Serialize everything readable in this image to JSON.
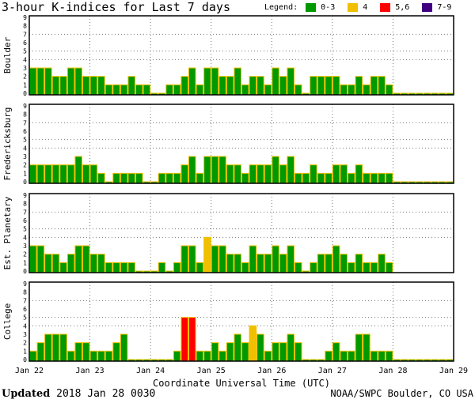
{
  "title": "3-hour K-indices for Last 7 days",
  "legend": {
    "label": "Legend:",
    "items": [
      {
        "label": "0-3",
        "color": "#009900"
      },
      {
        "label": "4",
        "color": "#f0c000"
      },
      {
        "label": "5,6",
        "color": "#ff0000"
      },
      {
        "label": "7-9",
        "color": "#400080"
      }
    ]
  },
  "footer": {
    "updated_label": "Updated",
    "updated_value": "2018 Jan 28 0030",
    "source": "NOAA/SWPC Boulder, CO USA"
  },
  "chart_data": {
    "type": "bar",
    "title": "3-hour K-indices for Last 7 days",
    "xlabel": "Coordinate Universal Time (UTC)",
    "x_ticks": [
      "Jan 22",
      "Jan 23",
      "Jan 24",
      "Jan 25",
      "Jan 26",
      "Jan 27",
      "Jan 28",
      "Jan 29"
    ],
    "ylim": [
      0,
      9
    ],
    "y_ticks": [
      "0",
      "1",
      "2",
      "3",
      "4",
      "5",
      "6",
      "7",
      "8",
      "9"
    ],
    "bars_per_day": 8,
    "panels": [
      {
        "name": "Boulder",
        "values": [
          3,
          3,
          3,
          2,
          2,
          3,
          3,
          2,
          2,
          2,
          1,
          1,
          1,
          2,
          1,
          1,
          0,
          0,
          1,
          1,
          2,
          3,
          1,
          3,
          3,
          2,
          2,
          3,
          1,
          2,
          2,
          1,
          3,
          2,
          3,
          1,
          0,
          2,
          2,
          2,
          2,
          1,
          1,
          2,
          1,
          2,
          2,
          1,
          0,
          0,
          0,
          0,
          0,
          0,
          0,
          0
        ]
      },
      {
        "name": "Fredericksburg",
        "values": [
          2,
          2,
          2,
          2,
          2,
          2,
          3,
          2,
          2,
          1,
          0,
          1,
          1,
          1,
          1,
          0,
          0,
          1,
          1,
          1,
          2,
          3,
          1,
          3,
          3,
          3,
          2,
          2,
          1,
          2,
          2,
          2,
          3,
          2,
          3,
          1,
          1,
          2,
          1,
          1,
          2,
          2,
          1,
          2,
          1,
          1,
          1,
          1,
          0,
          0,
          0,
          0,
          0,
          0,
          0,
          0
        ]
      },
      {
        "name": "Est. Planetary",
        "values": [
          3,
          3,
          2,
          2,
          1,
          2,
          3,
          3,
          2,
          2,
          1,
          1,
          1,
          1,
          0,
          0,
          0,
          1,
          0,
          1,
          3,
          3,
          1,
          4,
          3,
          3,
          2,
          2,
          1,
          3,
          2,
          2,
          3,
          2,
          3,
          1,
          0,
          1,
          2,
          2,
          3,
          2,
          1,
          2,
          1,
          1,
          2,
          1,
          null,
          null,
          null,
          null,
          null,
          null,
          null,
          null
        ]
      },
      {
        "name": "College",
        "values": [
          1,
          2,
          3,
          3,
          3,
          1,
          2,
          2,
          1,
          1,
          1,
          2,
          3,
          0,
          0,
          0,
          0,
          0,
          0,
          1,
          5,
          5,
          1,
          1,
          2,
          1,
          2,
          3,
          2,
          4,
          3,
          1,
          2,
          2,
          3,
          2,
          0,
          0,
          0,
          1,
          2,
          1,
          1,
          3,
          3,
          1,
          1,
          1,
          0,
          0,
          0,
          0,
          0,
          0,
          0,
          0
        ]
      }
    ]
  }
}
